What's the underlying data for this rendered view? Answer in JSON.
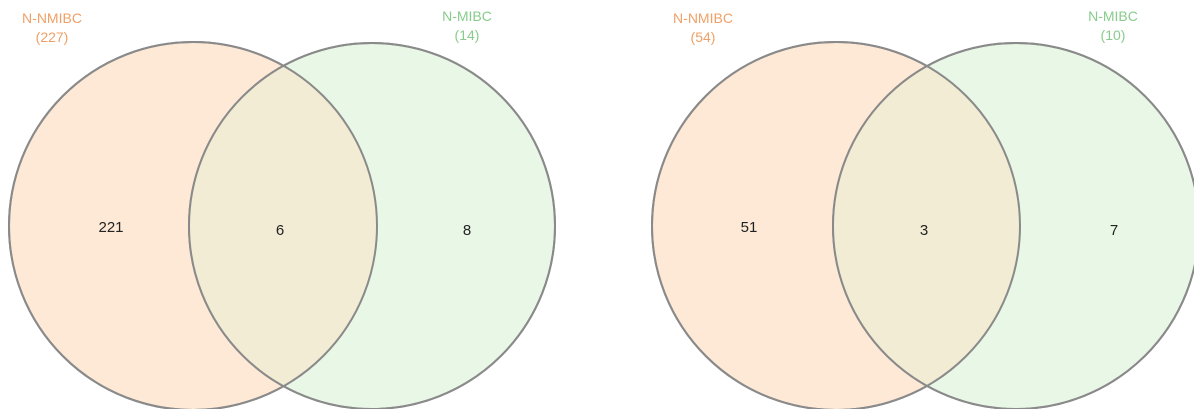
{
  "colors": {
    "set_a_fill": "#fde9d6",
    "set_b_fill": "#e9f8e6",
    "overlap_fill": "#f1ecd3",
    "set_a_label": "#f0a066",
    "set_b_label": "#88cc8c",
    "outline": "#8a8a8a"
  },
  "diagrams": [
    {
      "set_a": {
        "name": "N-NMIBC",
        "total": "(227)",
        "only_count": "221"
      },
      "set_b": {
        "name": "N-MIBC",
        "total": "(14)",
        "only_count": "8"
      },
      "overlap_count": "6"
    },
    {
      "set_a": {
        "name": "N-NMIBC",
        "total": "(54)",
        "only_count": "51"
      },
      "set_b": {
        "name": "N-MIBC",
        "total": "(10)",
        "only_count": "7"
      },
      "overlap_count": "3"
    }
  ]
}
